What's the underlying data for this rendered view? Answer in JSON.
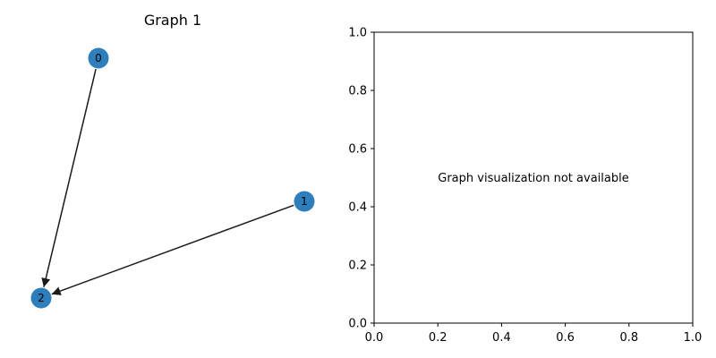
{
  "graph": {
    "title": "Graph 1",
    "node_color": "#2e7ebc",
    "edge_color": "#1a1a1a",
    "nodes": [
      {
        "id": "0",
        "label": "0"
      },
      {
        "id": "1",
        "label": "1"
      },
      {
        "id": "2",
        "label": "2"
      }
    ],
    "edges": [
      {
        "from": "0",
        "to": "2"
      },
      {
        "from": "1",
        "to": "2"
      }
    ]
  },
  "empty_plot": {
    "message": "Graph visualization not available",
    "x_ticks": [
      "0.0",
      "0.2",
      "0.4",
      "0.6",
      "0.8",
      "1.0"
    ],
    "y_ticks": [
      "0.0",
      "0.2",
      "0.4",
      "0.6",
      "0.8",
      "1.0"
    ],
    "xlim": [
      0,
      1
    ],
    "ylim": [
      0,
      1
    ]
  }
}
